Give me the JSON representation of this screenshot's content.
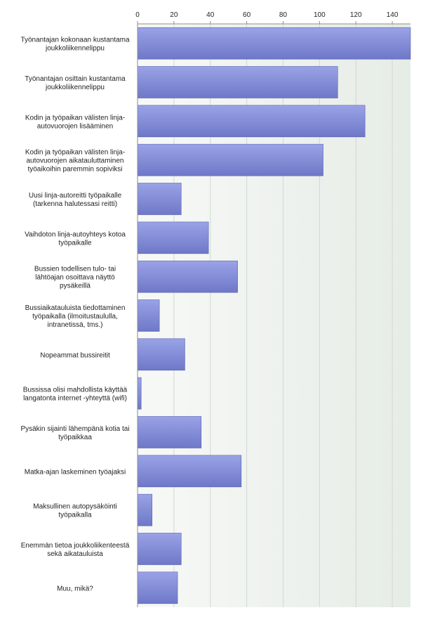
{
  "chart_data": {
    "type": "bar",
    "orientation": "horizontal",
    "title": "",
    "xlabel": "",
    "ylabel": "",
    "xlim": [
      0,
      150
    ],
    "x_ticks": [
      0,
      20,
      40,
      60,
      80,
      100,
      120,
      140
    ],
    "x_axis_position": "top",
    "grid": true,
    "legend": "none",
    "colors": {
      "bar_fill_light": "#9aa3e6",
      "bar_fill_dark": "#6e78c8",
      "bar_stroke": "#5a63b0",
      "plot_bg_left": "#f7f9f7",
      "plot_bg_right": "#e6ece6",
      "grid": "#d2d8d2",
      "axis": "#8a8f8a"
    },
    "categories": [
      [
        "Työnantajan kokonaan kustantama",
        "joukkoliikennelippu"
      ],
      [
        "Työnantajan osittain kustantama",
        "joukkoliikennelippu"
      ],
      [
        "Kodin ja työpaikan välisten linja-",
        "autovuorojen lisääminen"
      ],
      [
        "Kodin ja työpaikan välisten linja-",
        "autovuorojen aikatauluttaminen",
        "työaikoihin paremmin sopiviksi"
      ],
      [
        "Uusi linja-autoreitti työpaikalle",
        "(tarkenna halutessasi reitti)"
      ],
      [
        "Vaihdoton linja-autoyhteys kotoa",
        "työpaikalle"
      ],
      [
        "Bussien todellisen tulo- tai",
        "lähtöajan osoittava näyttö",
        "pysäkeillä"
      ],
      [
        "Bussiaikatauluista tiedottaminen",
        "työpaikalla (ilmoitustaululla,",
        "intranetissä, tms.)"
      ],
      [
        "Nopeammat bussireitit"
      ],
      [
        "Bussissa olisi mahdollista käyttää",
        "langatonta internet -yhteyttä (wifi)"
      ],
      [
        "Pysäkin sijainti lähempänä kotia tai",
        "työpaikkaa"
      ],
      [
        "Matka-ajan laskeminen työajaksi"
      ],
      [
        "Maksullinen autopysäköinti",
        "työpaikalla"
      ],
      [
        "Enemmän tietoa joukkoliikenteestä",
        "sekä aikatauluista"
      ],
      [
        "Muu, mikä?"
      ]
    ],
    "values": [
      150,
      110,
      125,
      102,
      24,
      39,
      55,
      12,
      26,
      2,
      35,
      57,
      8,
      24,
      22
    ]
  }
}
